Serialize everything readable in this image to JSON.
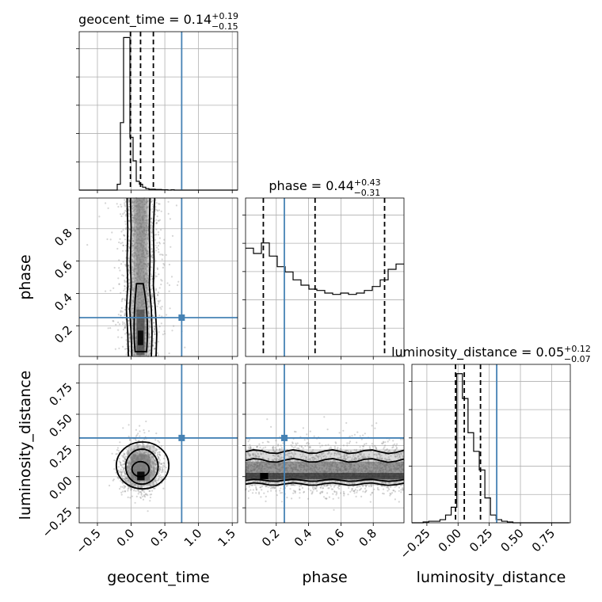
{
  "chart_data": {
    "type": "corner",
    "parameters": [
      "geocent_time",
      "phase",
      "luminosity_distance"
    ],
    "truth": {
      "geocent_time": 0.75,
      "phase": 0.25,
      "luminosity_distance": 0.31
    },
    "truth_color": "#4682b4",
    "ranges": {
      "geocent_time": [
        -0.77,
        1.58
      ],
      "phase": [
        0.01,
        0.99
      ],
      "luminosity_distance": [
        -0.37,
        0.9
      ]
    },
    "ticks": {
      "geocent_time": [
        "−0.5",
        "0.0",
        "0.5",
        "1.0",
        "1.5"
      ],
      "geocent_time_values": [
        -0.5,
        0.0,
        0.5,
        1.0,
        1.5
      ],
      "phase": [
        "0.2",
        "0.4",
        "0.6",
        "0.8"
      ],
      "phase_values": [
        0.2,
        0.4,
        0.6,
        0.8
      ],
      "luminosity_distance": [
        "−0.25",
        "0.00",
        "0.25",
        "0.50",
        "0.75"
      ],
      "luminosity_distance_values": [
        -0.25,
        0.0,
        0.25,
        0.5,
        0.75
      ]
    },
    "diagonal": [
      {
        "param": "geocent_time",
        "title": {
          "main": "geocent_time = 0.14",
          "sup": "+0.19",
          "sub": "−0.15"
        },
        "quantiles": [
          -0.01,
          0.14,
          0.33
        ],
        "hist_edges_start": -0.77,
        "hist_bin_width": 0.047,
        "hist_counts": [
          0,
          0,
          0,
          0,
          0,
          0,
          0,
          0,
          0,
          0,
          0,
          0,
          2,
          23,
          52,
          52,
          18,
          10,
          3,
          2,
          1,
          0.5,
          0.3,
          0.3,
          0.2,
          0.2,
          0.1,
          0.1,
          0,
          0.1,
          0,
          0,
          0,
          0,
          0,
          0,
          0,
          0,
          0,
          0,
          0,
          0,
          0,
          0,
          0,
          0,
          0,
          0,
          0,
          0
        ],
        "ylim": [
          0,
          54
        ]
      },
      {
        "param": "phase",
        "title": {
          "main": "phase = 0.44",
          "sup": "+0.43",
          "sub": "−0.31"
        },
        "quantiles": [
          0.12,
          0.44,
          0.87
        ],
        "hist_edges_start": 0.01,
        "hist_bin_width": 0.049,
        "hist_counts": [
          82,
          78,
          86,
          76,
          68,
          64,
          58,
          54,
          51,
          50,
          48,
          47,
          48,
          47,
          48,
          50,
          53,
          58,
          66,
          70,
          72
        ],
        "ylim": [
          0,
          120
        ]
      },
      {
        "param": "luminosity_distance",
        "title": {
          "main": "luminosity_distance = 0.05",
          "sup": "+0.12",
          "sub": "−0.07"
        },
        "quantiles": [
          -0.02,
          0.05,
          0.18
        ],
        "hist_edges_start": -0.37,
        "hist_bin_width": 0.045,
        "hist_counts": [
          0,
          0,
          0.5,
          1,
          1,
          2,
          5,
          10,
          96,
          80,
          58,
          46,
          34,
          16,
          5,
          2,
          1,
          0.5,
          0,
          0,
          0,
          0,
          0,
          0,
          0,
          0,
          0,
          0
        ],
        "ylim": [
          0,
          102
        ]
      }
    ],
    "pairs": [
      {
        "x": "geocent_time",
        "y": "phase"
      },
      {
        "x": "geocent_time",
        "y": "luminosity_distance"
      },
      {
        "x": "phase",
        "y": "luminosity_distance"
      }
    ],
    "grid": true,
    "axis_labels": {
      "x": [
        "geocent_time",
        "phase",
        "luminosity_distance"
      ],
      "y": [
        "phase",
        "luminosity_distance"
      ]
    }
  }
}
